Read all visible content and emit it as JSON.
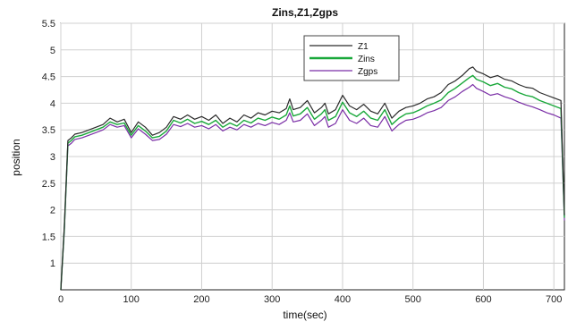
{
  "chart_data": {
    "type": "line",
    "title": "Zins,Z1,Zgps",
    "xlabel": "time(sec)",
    "ylabel": "position",
    "xlim": [
      0,
      715
    ],
    "ylim": [
      0.5,
      5.5
    ],
    "xticks": [
      0,
      100,
      200,
      300,
      400,
      500,
      600,
      700
    ],
    "yticks": [
      1,
      1.5,
      2,
      2.5,
      3,
      3.5,
      4,
      4.5,
      5,
      5.5
    ],
    "grid": true,
    "legend_position": "top-right",
    "x": [
      0,
      5,
      10,
      15,
      20,
      30,
      40,
      50,
      60,
      70,
      80,
      90,
      100,
      110,
      120,
      130,
      140,
      150,
      160,
      170,
      180,
      190,
      200,
      210,
      220,
      230,
      240,
      250,
      260,
      270,
      280,
      290,
      300,
      310,
      320,
      325,
      330,
      340,
      350,
      360,
      370,
      375,
      380,
      390,
      400,
      410,
      420,
      430,
      440,
      450,
      460,
      470,
      480,
      490,
      500,
      510,
      520,
      530,
      540,
      550,
      560,
      570,
      580,
      585,
      590,
      600,
      610,
      620,
      630,
      640,
      650,
      660,
      670,
      680,
      690,
      700,
      710,
      715
    ],
    "series": [
      {
        "name": "Z1",
        "color": "#2a2a2a",
        "values": [
          0.5,
          1.7,
          3.3,
          3.35,
          3.42,
          3.45,
          3.5,
          3.55,
          3.6,
          3.72,
          3.65,
          3.7,
          3.45,
          3.65,
          3.55,
          3.4,
          3.45,
          3.55,
          3.75,
          3.7,
          3.78,
          3.7,
          3.75,
          3.68,
          3.78,
          3.62,
          3.72,
          3.65,
          3.78,
          3.72,
          3.82,
          3.78,
          3.85,
          3.82,
          3.9,
          4.08,
          3.88,
          3.92,
          4.05,
          3.82,
          3.92,
          4.0,
          3.8,
          3.88,
          4.15,
          3.95,
          3.88,
          3.98,
          3.85,
          3.8,
          4.0,
          3.72,
          3.85,
          3.92,
          3.95,
          4.0,
          4.08,
          4.12,
          4.2,
          4.35,
          4.42,
          4.52,
          4.65,
          4.68,
          4.6,
          4.55,
          4.48,
          4.52,
          4.45,
          4.42,
          4.35,
          4.3,
          4.28,
          4.2,
          4.15,
          4.1,
          4.05,
          1.9
        ]
      },
      {
        "name": "Zins",
        "color": "#19a83a",
        "values": [
          0.5,
          1.65,
          3.25,
          3.3,
          3.37,
          3.4,
          3.45,
          3.5,
          3.55,
          3.65,
          3.6,
          3.63,
          3.4,
          3.58,
          3.48,
          3.35,
          3.38,
          3.48,
          3.68,
          3.63,
          3.7,
          3.62,
          3.66,
          3.6,
          3.68,
          3.55,
          3.63,
          3.57,
          3.68,
          3.63,
          3.72,
          3.68,
          3.74,
          3.7,
          3.78,
          3.95,
          3.76,
          3.8,
          3.92,
          3.7,
          3.8,
          3.88,
          3.68,
          3.75,
          4.02,
          3.82,
          3.75,
          3.85,
          3.72,
          3.68,
          3.88,
          3.6,
          3.72,
          3.8,
          3.82,
          3.88,
          3.95,
          4.0,
          4.06,
          4.2,
          4.28,
          4.38,
          4.48,
          4.52,
          4.45,
          4.4,
          4.33,
          4.37,
          4.3,
          4.27,
          4.2,
          4.15,
          4.12,
          4.05,
          4.0,
          3.95,
          3.9,
          1.85
        ]
      },
      {
        "name": "Zgps",
        "color": "#7a2ea6",
        "values": [
          0.5,
          1.6,
          3.2,
          3.25,
          3.32,
          3.35,
          3.4,
          3.45,
          3.5,
          3.6,
          3.55,
          3.58,
          3.35,
          3.52,
          3.42,
          3.3,
          3.32,
          3.42,
          3.6,
          3.56,
          3.62,
          3.55,
          3.58,
          3.52,
          3.6,
          3.48,
          3.55,
          3.5,
          3.6,
          3.55,
          3.62,
          3.58,
          3.64,
          3.6,
          3.68,
          3.82,
          3.65,
          3.68,
          3.8,
          3.58,
          3.68,
          3.75,
          3.55,
          3.62,
          3.88,
          3.68,
          3.62,
          3.72,
          3.58,
          3.55,
          3.75,
          3.48,
          3.6,
          3.68,
          3.7,
          3.75,
          3.82,
          3.86,
          3.92,
          4.05,
          4.12,
          4.22,
          4.3,
          4.35,
          4.28,
          4.22,
          4.15,
          4.18,
          4.12,
          4.08,
          4.02,
          3.97,
          3.93,
          3.88,
          3.82,
          3.78,
          3.72,
          1.8
        ]
      }
    ]
  }
}
